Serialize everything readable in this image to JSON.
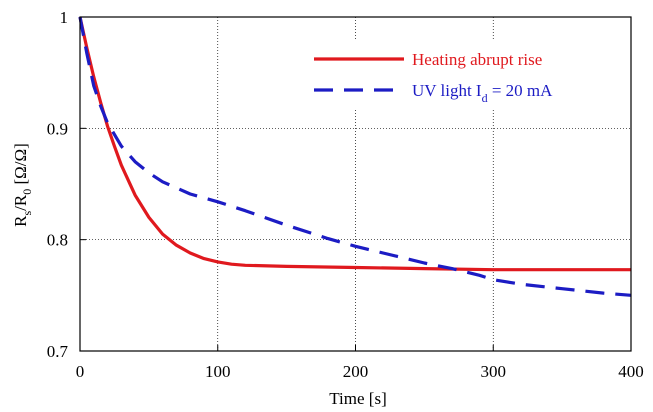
{
  "chart_data": {
    "type": "line",
    "title": "",
    "xlabel": "Time [s]",
    "ylabel": {
      "base": "R",
      "sub1": "s",
      "slash": "/R",
      "sub2": "0",
      "unit": " [Ω/Ω]"
    },
    "xlim": [
      0,
      400
    ],
    "ylim": [
      0.7,
      1.0
    ],
    "xticks": [
      "0",
      "100",
      "200",
      "300",
      "400"
    ],
    "yticks": [
      "0.7",
      "0.8",
      "0.9",
      "1"
    ],
    "grid": true,
    "legend_position": "top-right",
    "series": [
      {
        "name": "Heating abrupt rise",
        "color": "#e0191e",
        "style": "solid",
        "x": [
          0,
          5,
          10,
          15,
          20,
          25,
          30,
          40,
          50,
          60,
          70,
          80,
          90,
          100,
          110,
          120,
          150,
          200,
          250,
          300,
          350,
          400
        ],
        "y": [
          1.0,
          0.972,
          0.946,
          0.923,
          0.902,
          0.884,
          0.867,
          0.84,
          0.82,
          0.805,
          0.795,
          0.788,
          0.783,
          0.78,
          0.778,
          0.777,
          0.776,
          0.775,
          0.774,
          0.773,
          0.773,
          0.773
        ]
      },
      {
        "name": "UV light I",
        "name_sub": "d",
        "name_suffix": " = 20 mA",
        "color": "#1c1cc4",
        "style": "dashed",
        "x": [
          0,
          5,
          10,
          15,
          20,
          30,
          40,
          50,
          60,
          80,
          100,
          120,
          150,
          180,
          200,
          220,
          250,
          270,
          290,
          300,
          320,
          350,
          380,
          400
        ],
        "y": [
          1.0,
          0.967,
          0.938,
          0.92,
          0.905,
          0.884,
          0.87,
          0.86,
          0.852,
          0.841,
          0.834,
          0.826,
          0.813,
          0.801,
          0.794,
          0.788,
          0.779,
          0.774,
          0.768,
          0.764,
          0.76,
          0.756,
          0.752,
          0.75
        ]
      }
    ]
  }
}
